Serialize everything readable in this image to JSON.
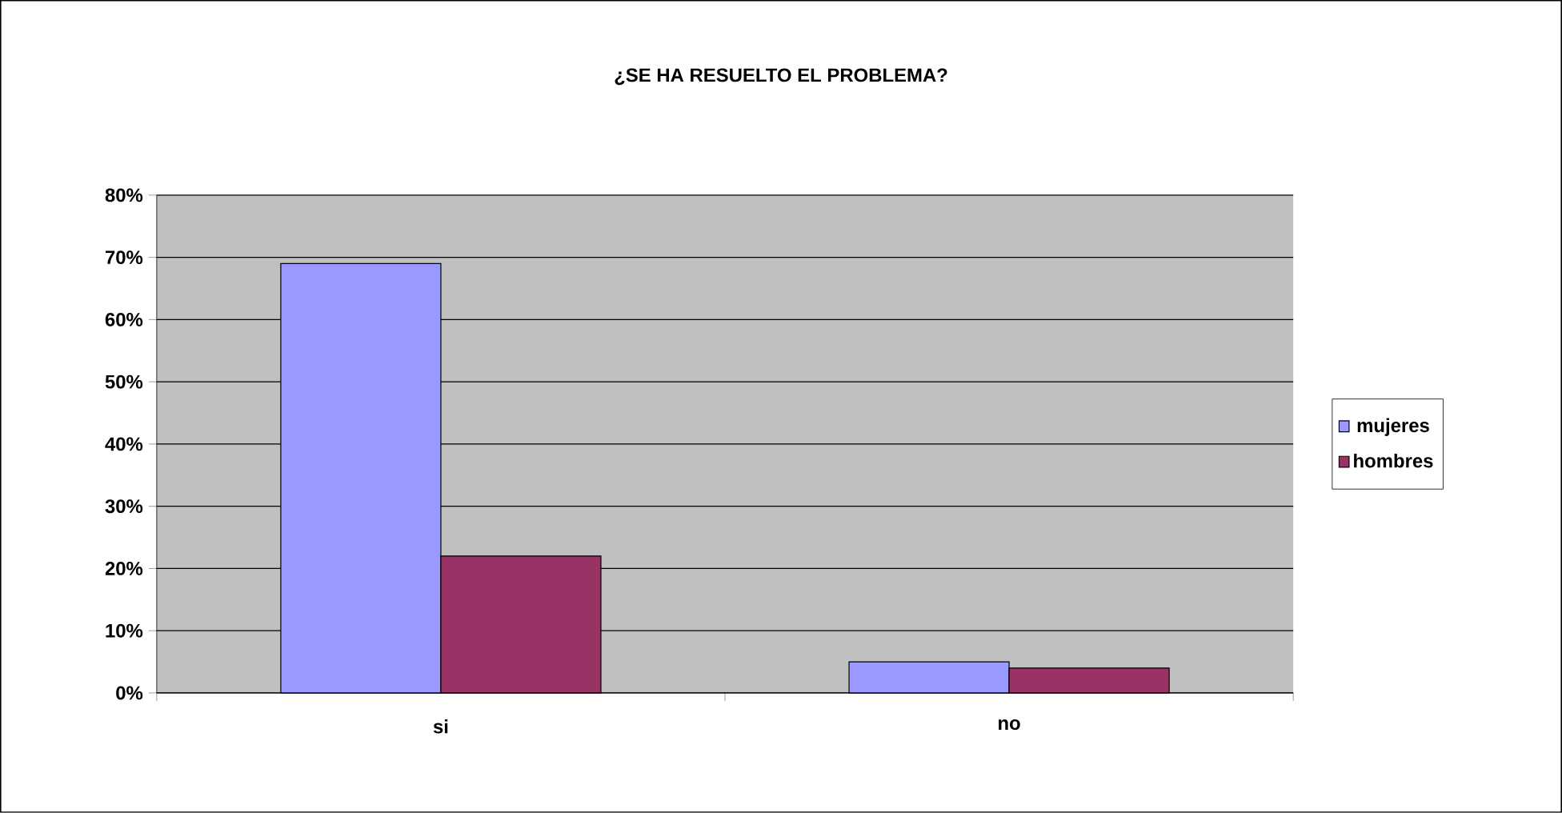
{
  "chart_data": {
    "type": "bar",
    "title": "¿SE HA RESUELTO EL PROBLEMA?",
    "categories": [
      "si",
      "no"
    ],
    "series": [
      {
        "name": "mujeres",
        "color": "#9999ff",
        "values": [
          69,
          5
        ]
      },
      {
        "name": "hombres",
        "color": "#993366",
        "values": [
          22,
          4
        ]
      }
    ],
    "ylim": [
      0,
      80
    ],
    "yticks": [
      {
        "value": 0,
        "label": "0%"
      },
      {
        "value": 10,
        "label": "10%"
      },
      {
        "value": 20,
        "label": "20%"
      },
      {
        "value": 30,
        "label": "30%"
      },
      {
        "value": 40,
        "label": "40%"
      },
      {
        "value": 50,
        "label": "50%"
      },
      {
        "value": 60,
        "label": "60%"
      },
      {
        "value": 70,
        "label": "70%"
      },
      {
        "value": 80,
        "label": "80%"
      }
    ],
    "grid": "y",
    "legend": "right"
  }
}
